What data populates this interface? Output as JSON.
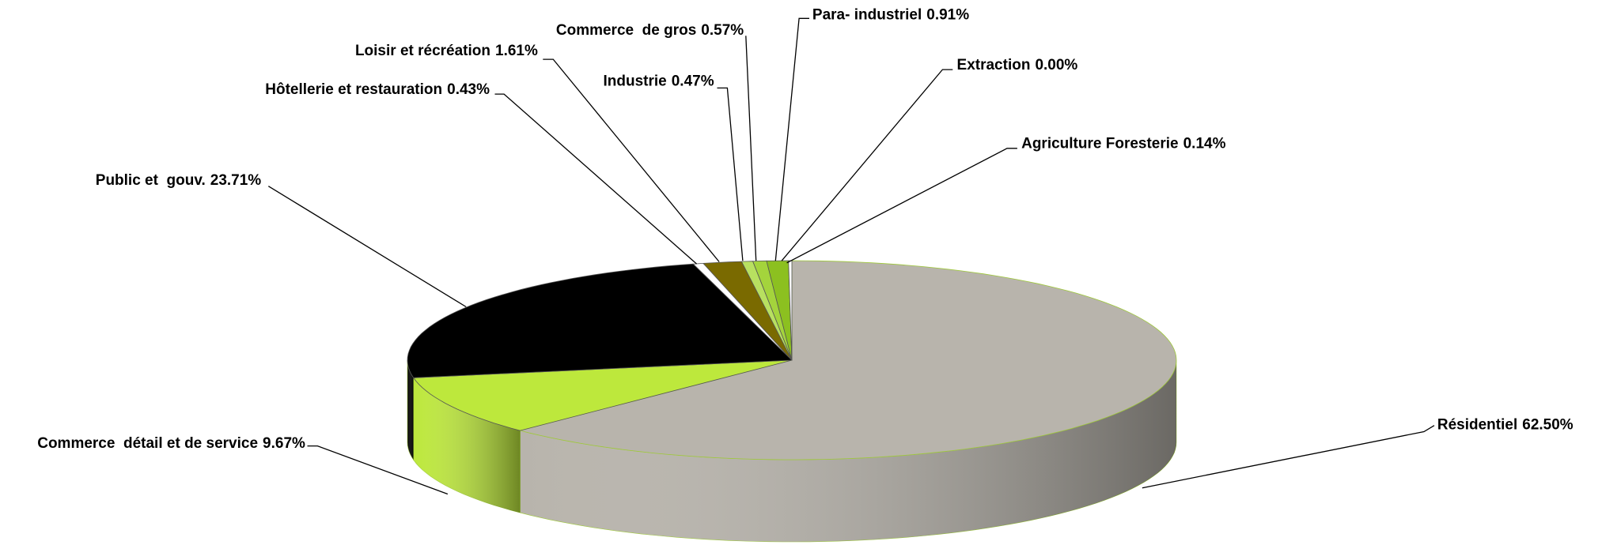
{
  "chart_data": {
    "type": "pie3d",
    "categories": [
      "Résidentiel",
      "Commerce  détail et de service",
      "Public et  gouv.",
      "Hôtellerie et restauration",
      "Loisir et récréation",
      "Industrie",
      "Commerce  de gros",
      "Para- industriel",
      "Extraction",
      "Agriculture Foresterie"
    ],
    "values": [
      62.5,
      9.67,
      23.71,
      0.43,
      1.61,
      0.47,
      0.57,
      0.91,
      0.0,
      0.14
    ],
    "value_labels": [
      "62.50%",
      "9.67%",
      "23.71%",
      "0.43%",
      "1.61%",
      "0.47%",
      "0.57%",
      "0.91%",
      "0.00%",
      "0.14%"
    ],
    "colors": [
      "#b8b4ac",
      "#bde83c",
      "#000000",
      "#ffffff",
      "#7a6a00",
      "#b8e060",
      "#a4d43c",
      "#8cc020",
      "#6a9a10",
      "#ffffff"
    ]
  }
}
